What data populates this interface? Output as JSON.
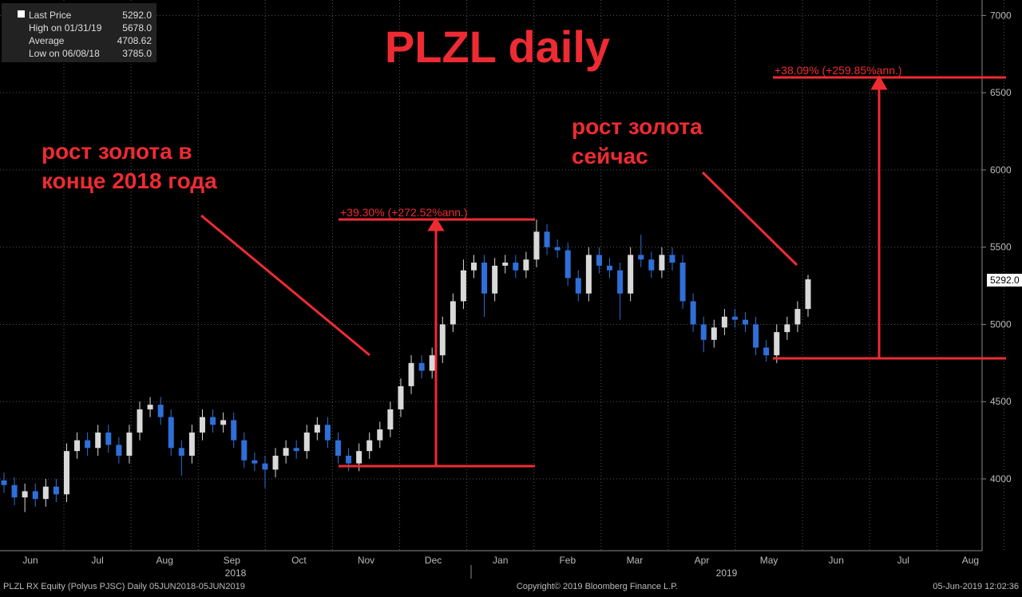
{
  "header": {
    "title": "PLZL daily"
  },
  "legend": [
    {
      "label": "Last Price",
      "value": "5292.0"
    },
    {
      "label": "High on 01/31/19",
      "value": "5678.0"
    },
    {
      "label": "Average",
      "value": "4708.62"
    },
    {
      "label": "Low on 06/08/18",
      "value": "3785.0"
    }
  ],
  "chart_data": {
    "type": "candlestick",
    "open": [
      3990,
      3960,
      3880,
      3920,
      3870,
      3950,
      3900,
      4180,
      4250,
      4200,
      4300,
      4220,
      4150,
      4300,
      4450,
      4480,
      4400,
      4200,
      4150,
      4300,
      4400,
      4350,
      4380,
      4250,
      4120,
      4100,
      4060,
      4150,
      4200,
      4180,
      4300,
      4350,
      4250,
      4150,
      4100,
      4180,
      4250,
      4320,
      4450,
      4600,
      4750,
      4700,
      4800,
      5000,
      5150,
      5350,
      5400,
      5200,
      5380,
      5400,
      5350,
      5420,
      5600,
      5500,
      5480,
      5300,
      5200,
      5450,
      5380,
      5350,
      5200,
      5450,
      5420,
      5350,
      5450,
      5400,
      5150,
      5000,
      4900,
      4980,
      5050,
      5030,
      5000,
      4850,
      4800,
      4950,
      5000,
      5100
    ],
    "high": [
      4040,
      4010,
      3970,
      3970,
      4000,
      4000,
      4230,
      4300,
      4300,
      4350,
      4350,
      4270,
      4350,
      4500,
      4530,
      4530,
      4450,
      4250,
      4350,
      4450,
      4450,
      4430,
      4430,
      4300,
      4170,
      4150,
      4200,
      4250,
      4250,
      4350,
      4400,
      4400,
      4300,
      4200,
      4230,
      4300,
      4370,
      4500,
      4650,
      4800,
      4800,
      4850,
      5050,
      5200,
      5420,
      5450,
      5450,
      5430,
      5450,
      5450,
      5470,
      5678,
      5650,
      5550,
      5530,
      5350,
      5500,
      5500,
      5430,
      5400,
      5500,
      5580,
      5470,
      5500,
      5500,
      5450,
      5200,
      5050,
      5030,
      5100,
      5100,
      5080,
      5050,
      4900,
      5000,
      5050,
      5150,
      5320
    ],
    "low": [
      3910,
      3830,
      3785,
      3820,
      3820,
      3850,
      3850,
      4130,
      4150,
      4150,
      4170,
      4100,
      4100,
      4250,
      4400,
      4350,
      4150,
      4020,
      4100,
      4250,
      4300,
      4300,
      4200,
      4070,
      4050,
      3940,
      4010,
      4100,
      4130,
      4130,
      4250,
      4200,
      4100,
      4050,
      4050,
      4130,
      4200,
      4270,
      4400,
      4550,
      4650,
      4650,
      4750,
      4950,
      5100,
      5300,
      5050,
      5150,
      5330,
      5300,
      5300,
      5370,
      5450,
      5430,
      5250,
      5150,
      5150,
      5330,
      5300,
      5030,
      5150,
      5370,
      5300,
      5300,
      5350,
      5100,
      4950,
      4820,
      4850,
      4930,
      4980,
      4950,
      4800,
      4760,
      4750,
      4900,
      4950,
      5050
    ],
    "close": [
      3960,
      3880,
      3920,
      3870,
      3950,
      3900,
      4180,
      4250,
      4200,
      4300,
      4220,
      4150,
      4300,
      4450,
      4480,
      4400,
      4200,
      4150,
      4300,
      4400,
      4350,
      4380,
      4250,
      4120,
      4100,
      4060,
      4150,
      4200,
      4180,
      4300,
      4350,
      4250,
      4150,
      4100,
      4180,
      4250,
      4320,
      4450,
      4600,
      4750,
      4700,
      4800,
      5000,
      5150,
      5350,
      5400,
      5200,
      5380,
      5400,
      5350,
      5420,
      5600,
      5500,
      5480,
      5300,
      5200,
      5450,
      5380,
      5350,
      5200,
      5450,
      5420,
      5350,
      5450,
      5400,
      5150,
      5000,
      4900,
      4980,
      5050,
      5030,
      5000,
      4850,
      4800,
      4950,
      5000,
      5100,
      5292
    ],
    "up_color": "#d9d9d9",
    "down_color": "#2f6fd8",
    "ylim": [
      3535,
      7100
    ],
    "yticks": [
      4000,
      4500,
      5000,
      5500,
      6000,
      6500,
      7000
    ],
    "grid": true,
    "months": [
      "Jun",
      "Jul",
      "Aug",
      "Sep",
      "Oct",
      "Nov",
      "Dec",
      "Jan",
      "Feb",
      "Mar",
      "Apr",
      "May",
      "Jun",
      "Jul",
      "Aug"
    ],
    "years": [
      "2018",
      "2019"
    ],
    "annotations": [
      "рост золота в",
      "конце 2018 года",
      "рост золота",
      "сейчас",
      "+39.30% (+272.52%ann.)",
      "+38.09% (+259.85%ann.)"
    ]
  },
  "footer": {
    "left": "PLZL RX Equity (Polyus PJSC)  Daily 05JUN2018-05JUN2019",
    "center": "Copyright© 2019 Bloomberg Finance L.P.",
    "right": "05-Jun-2019 12:02:36"
  }
}
